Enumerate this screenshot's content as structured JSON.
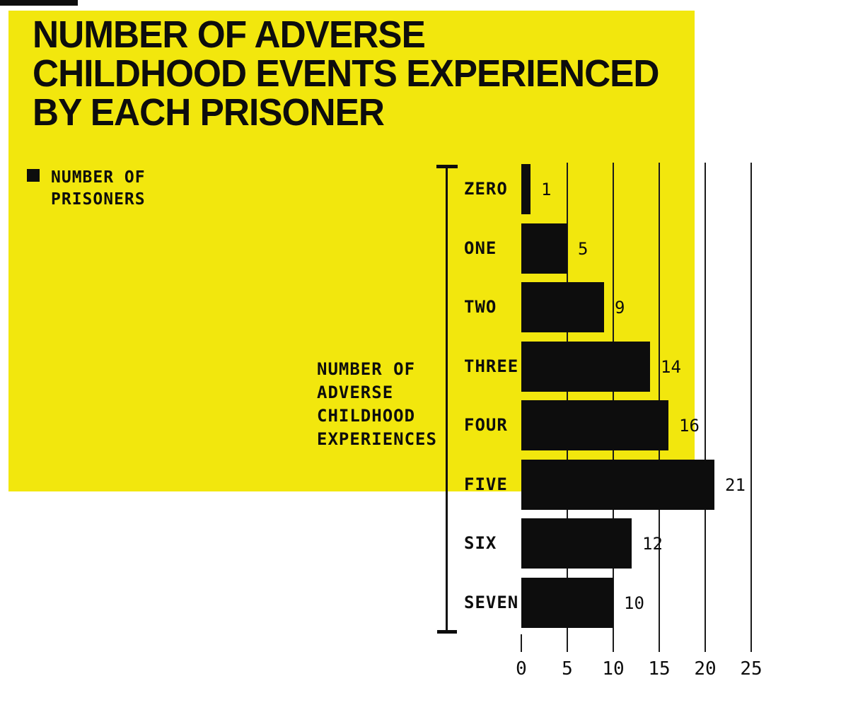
{
  "colors": {
    "yellow": "#f2e70d",
    "ink": "#0d0d0d",
    "grid": "#1b1b1b",
    "paper": "#ffffff"
  },
  "title": {
    "lines": [
      "NUMBER OF ADVERSE",
      "CHILDHOOD EVENTS EXPERIENCED",
      "BY EACH PRISONER"
    ]
  },
  "legend": {
    "swatch": "black-square",
    "lines": [
      "NUMBER OF",
      "PRISONERS"
    ]
  },
  "axis_label": {
    "lines": [
      "NUMBER OF",
      "ADVERSE",
      "CHILDHOOD",
      "EXPERIENCES"
    ]
  },
  "chart_data": {
    "type": "bar",
    "orientation": "horizontal",
    "title": "NUMBER OF ADVERSE CHILDHOOD EVENTS EXPERIENCED BY EACH PRISONER",
    "series_name": "NUMBER OF PRISONERS",
    "ylabel": "NUMBER OF ADVERSE CHILDHOOD EXPERIENCES",
    "categories": [
      "ZERO",
      "ONE",
      "TWO",
      "THREE",
      "FOUR",
      "FIVE",
      "SIX",
      "SEVEN"
    ],
    "values": [
      1,
      5,
      9,
      14,
      16,
      21,
      12,
      10
    ],
    "xticks": [
      0,
      5,
      10,
      15,
      20,
      25
    ],
    "xlim": [
      0,
      25
    ],
    "grid": true,
    "bar_color": "#0d0d0d",
    "background_color": "#f2e70d"
  }
}
